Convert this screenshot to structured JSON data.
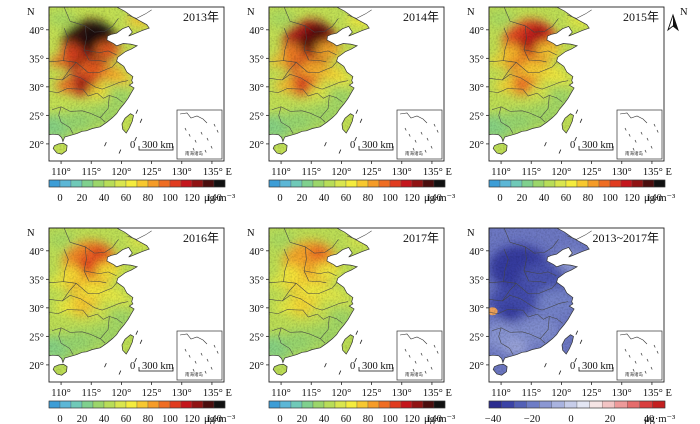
{
  "panels": [
    {
      "title": "2013年",
      "kind": "pm",
      "intensity": 1.0
    },
    {
      "title": "2014年",
      "kind": "pm",
      "intensity": 0.85
    },
    {
      "title": "2015年",
      "kind": "pm",
      "intensity": 0.68
    },
    {
      "title": "2016年",
      "kind": "pm",
      "intensity": 0.52
    },
    {
      "title": "2017年",
      "kind": "pm",
      "intensity": 0.45
    },
    {
      "title": "2013~2017年",
      "kind": "diff",
      "intensity": 1.0
    }
  ],
  "axes": {
    "x_ticks": [
      "110°",
      "115°",
      "120°",
      "125°",
      "130°",
      "135° E"
    ],
    "y_ticks": [
      "40°",
      "35°",
      "30°",
      "25°",
      "20°"
    ],
    "n_label": "N"
  },
  "scale_bar": {
    "zero": "0",
    "label": "300 km"
  },
  "inset_label": "南海诸岛",
  "north_arrow": {
    "label": "N"
  },
  "colorbar_pm": {
    "labels": [
      "0",
      "20",
      "40",
      "60",
      "80",
      "100",
      "120",
      "140"
    ],
    "unit": "μg·m⁻³",
    "colors": [
      "#3d9dd6",
      "#5cb7d6",
      "#6fc9b8",
      "#7fd08e",
      "#9bd66a",
      "#b8dd58",
      "#d9e64e",
      "#f4ec3d",
      "#f7c82f",
      "#f59c28",
      "#ef6d22",
      "#e03b1f",
      "#c4161c",
      "#901313",
      "#4a0d0d",
      "#111111"
    ]
  },
  "colorbar_diff": {
    "labels": [
      "−40",
      "−20",
      "0",
      "20",
      "40"
    ],
    "unit": "μg·m⁻³",
    "colors": [
      "#2b2c8f",
      "#3b43a6",
      "#5360b6",
      "#6d7cc6",
      "#8b97d3",
      "#a9b3df",
      "#c7cde9",
      "#e3e6f3",
      "#f6e5e5",
      "#f3c4c4",
      "#ee9a9a",
      "#e56c6c",
      "#d93d3d",
      "#c41f1f"
    ]
  }
}
